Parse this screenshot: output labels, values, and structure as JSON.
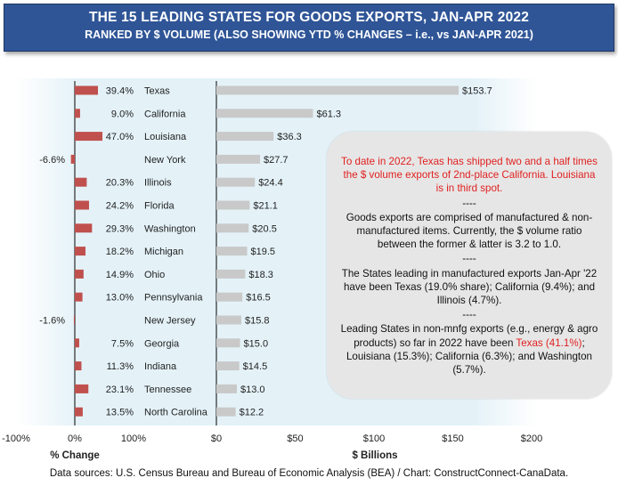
{
  "header": {
    "title": "THE 15 LEADING STATES FOR GOODS EXPORTS, JAN-APR 2022",
    "subtitle": "RANKED BY $ VOLUME (ALSO SHOWING YTD % CHANGES – i.e., vs JAN-APR 2021)"
  },
  "chart_data": {
    "type": "bar",
    "categories": [
      "Texas",
      "California",
      "Louisiana",
      "New York",
      "Illinois",
      "Florida",
      "Washington",
      "Michigan",
      "Ohio",
      "Pennsylvania",
      "New Jersey",
      "Georgia",
      "Indiana",
      "Tennessee",
      "North Carolina"
    ],
    "pct_change": {
      "axis_label": "% Change",
      "ticks": [
        "-100%",
        "0%",
        "100%"
      ],
      "xlim": [
        -100,
        100
      ],
      "values": [
        39.4,
        9.0,
        47.0,
        -6.6,
        20.3,
        24.2,
        29.3,
        18.2,
        14.9,
        13.0,
        -1.6,
        7.5,
        11.3,
        23.1,
        13.5
      ],
      "labels": [
        "39.4%",
        "9.0%",
        "47.0%",
        "-6.6%",
        "20.3%",
        "24.2%",
        "29.3%",
        "18.2%",
        "14.9%",
        "13.0%",
        "-1.6%",
        "7.5%",
        "11.3%",
        "23.1%",
        "13.5%"
      ],
      "color": "#c0504d"
    },
    "billions": {
      "axis_label": "$ Billions",
      "ticks": [
        "$0",
        "$50",
        "$100",
        "$150",
        "$200"
      ],
      "xlim": [
        0,
        200
      ],
      "values": [
        153.7,
        61.3,
        36.3,
        27.7,
        24.4,
        21.1,
        20.5,
        19.5,
        18.3,
        16.5,
        15.8,
        15.0,
        14.5,
        13.0,
        12.2
      ],
      "labels": [
        "$153.7",
        "$61.3",
        "$36.3",
        "$27.7",
        "$24.4",
        "$21.1",
        "$20.5",
        "$19.5",
        "$18.3",
        "$16.5",
        "$15.8",
        "$15.0",
        "$14.5",
        "$13.0",
        "$12.2"
      ],
      "color": "#c9c9c9"
    }
  },
  "note": {
    "highlight": "To date in 2022, Texas has shipped two and a half times the $ volume exports of 2nd-place California. Louisiana is in third spot.",
    "separator": "----",
    "p2": "Goods exports are comprised of manufactured & non-manufactured items. Currently, the $ volume ratio between the former & latter is 3.2 to 1.0.",
    "p3": "The States leading in manufactured exports Jan-Apr '22 have been Texas (19.0% share); California (9.4%); and Illinois (4.7%).",
    "p4_a": "Leading States in non-mnfg exports (e.g., energy & agro products) so far in 2022 have been ",
    "p4_red": "Texas (41.1%)",
    "p4_b": "; Louisiana (15.3%); California (6.3%); and Washington (5.7%)."
  },
  "footer": {
    "source": "Data sources: U.S. Census Bureau and Bureau of Economic Analysis (BEA) / Chart: ConstructConnect-CanaData."
  },
  "colors": {
    "banner": "#2f5597",
    "highlight_text": "#e02020"
  }
}
